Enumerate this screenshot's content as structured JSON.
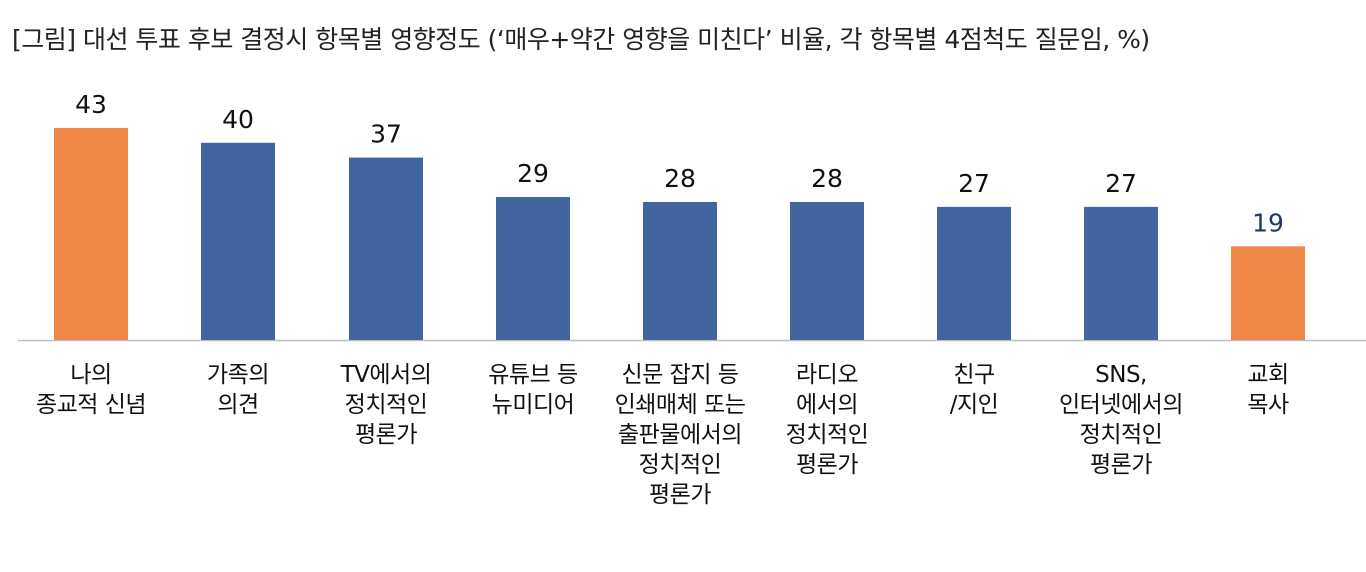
{
  "chart_data": {
    "type": "bar",
    "title": "[그림] 대선 투표 후보 결정시 항목별 영향정도 (‘매우+약간 영향을 미친다’ 비율, 각 항목별 4점척도 질문임, %)",
    "categories": [
      [
        "나의",
        "종교적 신념"
      ],
      [
        "가족의",
        "의견"
      ],
      [
        "TV에서의",
        "정치적인",
        "평론가"
      ],
      [
        "유튜브 등",
        "뉴미디어"
      ],
      [
        "신문 잡지 등",
        "인쇄매체 또는",
        "출판물에서의",
        "정치적인",
        "평론가"
      ],
      [
        "라디오",
        "에서의",
        "정치적인",
        "평론가"
      ],
      [
        "친구",
        "/지인"
      ],
      [
        "SNS,",
        "인터넷에서의",
        "정치적인",
        "평론가"
      ],
      [
        "교회",
        "목사"
      ]
    ],
    "values": [
      43,
      40,
      37,
      29,
      28,
      28,
      27,
      27,
      19
    ],
    "value_labels": [
      "43",
      "40",
      "37",
      "29",
      "28",
      "28",
      "27",
      "27",
      "19"
    ],
    "highlight": [
      true,
      false,
      false,
      false,
      false,
      false,
      false,
      false,
      true
    ],
    "colors": {
      "default": "#4265A0",
      "highlight": "#F0884A",
      "baseline": "#BFBFBF",
      "label": "#111111",
      "label_highlight_last": "#1F3864"
    },
    "ylim": [
      0,
      50
    ],
    "xlabel": "",
    "ylabel": "",
    "grid": false,
    "legend": "none"
  }
}
